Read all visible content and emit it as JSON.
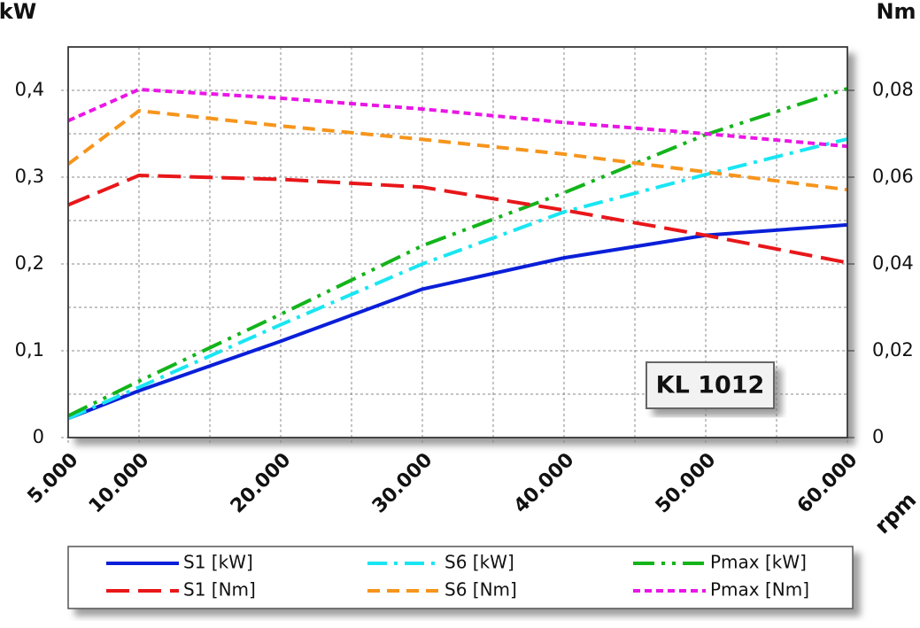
{
  "chart_data": {
    "type": "line",
    "annotation": "KL 1012",
    "x_label": "rpm",
    "y_label": "kW",
    "y2_label": "Nm",
    "x": [
      5000,
      10000,
      20000,
      30000,
      40000,
      50000,
      60000
    ],
    "xlim": [
      5000,
      60000
    ],
    "xticks": [
      {
        "value": 5000,
        "label": "5.000"
      },
      {
        "value": 10000,
        "label": "10.000"
      },
      {
        "value": 20000,
        "label": "20.000"
      },
      {
        "value": 30000,
        "label": "30.000"
      },
      {
        "value": 40000,
        "label": "40.000"
      },
      {
        "value": 50000,
        "label": "50.000"
      },
      {
        "value": 60000,
        "label": "60.000"
      }
    ],
    "xminor": [
      15000,
      25000,
      35000,
      45000,
      55000
    ],
    "ylim": [
      0,
      0.45
    ],
    "yticks": [
      0,
      {
        "value": 0.1,
        "label": "0,1"
      },
      {
        "value": 0.2,
        "label": "0,2"
      },
      {
        "value": 0.3,
        "label": "0,3"
      },
      {
        "value": 0.4,
        "label": "0,4"
      }
    ],
    "yminor": [
      0.05,
      0.15,
      0.25,
      0.35
    ],
    "y2lim": [
      0,
      0.09
    ],
    "y2ticks": [
      0,
      {
        "value": 0.02,
        "label": "0,02"
      },
      {
        "value": 0.04,
        "label": "0,04"
      },
      {
        "value": 0.06,
        "label": "0,06"
      },
      {
        "value": 0.08,
        "label": "0,08"
      }
    ],
    "grid": true,
    "series": [
      {
        "name": "S1 [kW]",
        "color": "#0a1fd8",
        "dash": "solid",
        "values": [
          0.022,
          0.054,
          0.111,
          0.171,
          0.207,
          0.233,
          0.245
        ]
      },
      {
        "name": "S6 [kW]",
        "color": "#19e6f2",
        "dash": "dashdot",
        "values": [
          0.022,
          0.058,
          0.13,
          0.2,
          0.26,
          0.303,
          0.344
        ]
      },
      {
        "name": "Pmax [kW]",
        "color": "#13b41a",
        "dash": "dashdotdot",
        "values": [
          0.025,
          0.065,
          0.142,
          0.221,
          0.282,
          0.349,
          0.402
        ]
      },
      {
        "name": "S1 [Nm]",
        "color": "#e8171a",
        "dash": "longdash",
        "axis": "y2",
        "values": [
          0.0536,
          0.0604,
          0.0595,
          0.0577,
          0.0524,
          0.0466,
          0.0403
        ]
      },
      {
        "name": "S6 [Nm]",
        "color": "#f6951c",
        "dash": "dash",
        "axis": "y2",
        "values": [
          0.063,
          0.0753,
          0.0718,
          0.0687,
          0.0653,
          0.0612,
          0.0571
        ]
      },
      {
        "name": "Pmax [Nm]",
        "color": "#ea16e6",
        "dash": "shortdash",
        "axis": "y2",
        "values": [
          0.073,
          0.0802,
          0.0782,
          0.0757,
          0.0726,
          0.07,
          0.0671
        ]
      }
    ]
  }
}
